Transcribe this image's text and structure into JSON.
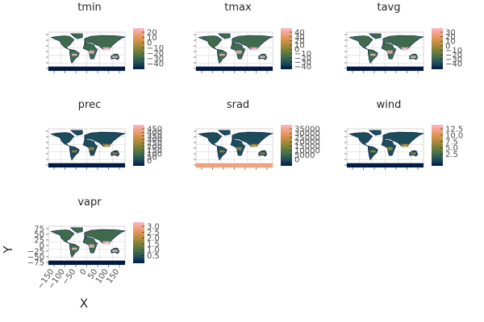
{
  "colormap": [
    "#001a45",
    "#1d4c5a",
    "#3f6b4c",
    "#6e7d3a",
    "#a58a39",
    "#d8914c",
    "#f0a07c",
    "#fbb7c8"
  ],
  "chart_data": [
    {
      "type": "heatmap",
      "title": "tmin",
      "colorbar_ticks": [
        "20",
        "10",
        "0",
        "−10",
        "−20",
        "−30",
        "−40"
      ],
      "colorbar_range": [
        -45,
        25
      ]
    },
    {
      "type": "heatmap",
      "title": "tmax",
      "colorbar_ticks": [
        "40",
        "30",
        "20",
        "10",
        "0",
        "−10",
        "−20",
        "−30",
        "−40"
      ],
      "colorbar_range": [
        -45,
        40
      ]
    },
    {
      "type": "heatmap",
      "title": "tavg",
      "colorbar_ticks": [
        "30",
        "20",
        "10",
        "0",
        "−10",
        "−20",
        "−30",
        "−40"
      ],
      "colorbar_range": [
        -45,
        33
      ]
    },
    {
      "type": "heatmap",
      "title": "prec",
      "colorbar_ticks": [
        "450",
        "400",
        "350",
        "300",
        "250",
        "200",
        "150",
        "100",
        "50",
        "0"
      ],
      "colorbar_range": [
        0,
        480
      ]
    },
    {
      "type": "heatmap",
      "title": "srad",
      "colorbar_ticks": [
        "35000",
        "30000",
        "25000",
        "20000",
        "15000",
        "10000",
        "5000",
        "0"
      ],
      "colorbar_range": [
        0,
        37000
      ]
    },
    {
      "type": "heatmap",
      "title": "wind",
      "colorbar_ticks": [
        "12.5",
        "10.0",
        "7.5",
        "5.0",
        "2.5"
      ],
      "colorbar_range": [
        0.5,
        13.5
      ]
    },
    {
      "type": "heatmap",
      "title": "vapr",
      "colorbar_ticks": [
        "3.0",
        "2.5",
        "2.0",
        "1.5",
        "1.0",
        "0.5"
      ],
      "colorbar_range": [
        0.1,
        3.2
      ],
      "xlabel": "X",
      "ylabel": "Y",
      "xticks": [
        "−150",
        "−100",
        "−50",
        "0",
        "50",
        "100",
        "150"
      ],
      "yticks": [
        "75",
        "50",
        "25",
        "0",
        "−25",
        "−50",
        "−75"
      ],
      "xlim": [
        -180,
        180
      ],
      "ylim": [
        -90,
        90
      ]
    }
  ]
}
